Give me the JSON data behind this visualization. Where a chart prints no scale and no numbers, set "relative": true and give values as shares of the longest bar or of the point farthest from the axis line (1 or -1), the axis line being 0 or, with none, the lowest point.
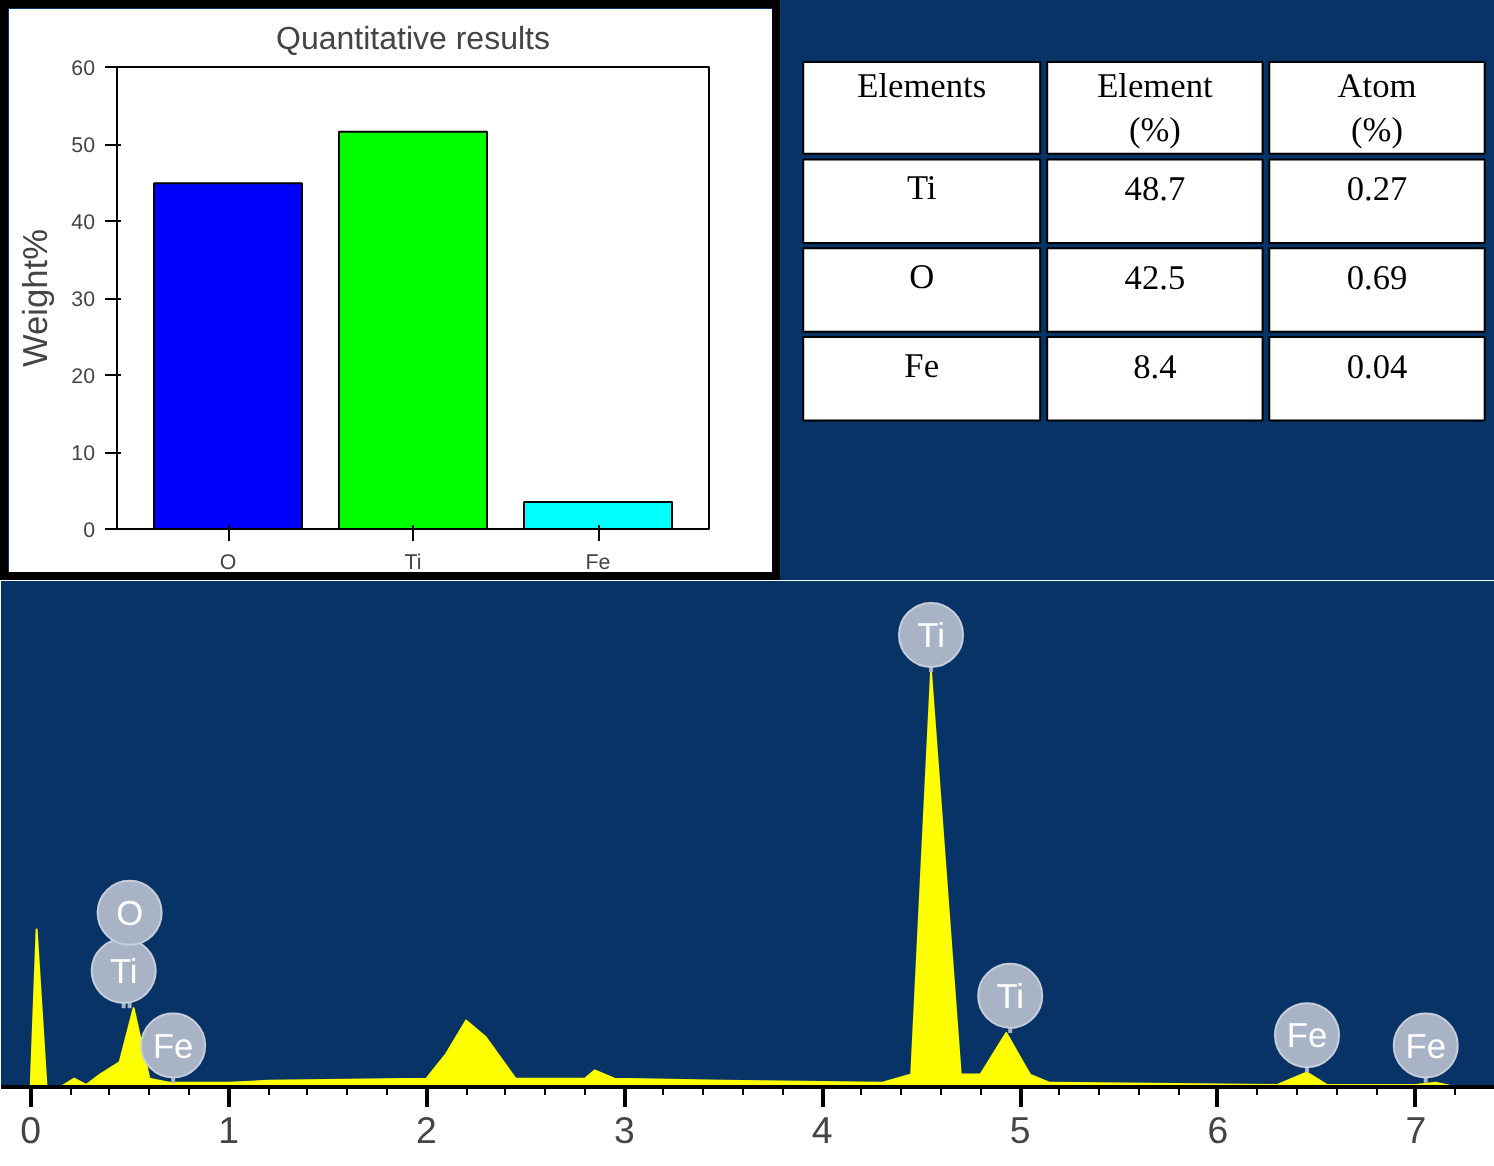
{
  "chart_data": [
    {
      "type": "bar",
      "title": "Quantitative results",
      "ylabel": "Weight%",
      "categories": [
        "O",
        "Ti",
        "Fe"
      ],
      "values": [
        44.9,
        51.6,
        3.5
      ],
      "colors": [
        "#0000ff",
        "#00ff00",
        "#00ffff"
      ],
      "ylim": [
        0,
        60
      ],
      "yticks": [
        0,
        10,
        20,
        30,
        40,
        50,
        60
      ],
      "grid": false
    },
    {
      "type": "other",
      "data_labels": true,
      "annotations": [
        "Elements"
      ],
      "categories": [
        "Ti",
        "O",
        "Fe"
      ],
      "series": [
        {
          "name": "Element (%)",
          "values": [
            48.7,
            42.5,
            8.4
          ]
        },
        {
          "name": "Atom (%)",
          "values": [
            0.27,
            0.69,
            0.04
          ]
        }
      ]
    },
    {
      "type": "area",
      "relative": true,
      "color": "#ffff00",
      "xlim": [
        -0.15,
        7.4
      ],
      "xticks": [
        0,
        1,
        2,
        3,
        4,
        5,
        6,
        7
      ],
      "grid": false,
      "x": [
        -0.05,
        0.0,
        0.03,
        0.08,
        0.15,
        0.22,
        0.28,
        0.35,
        0.45,
        0.52,
        0.6,
        0.7,
        1.0,
        1.2,
        2.0,
        2.1,
        2.2,
        2.3,
        2.45,
        2.8,
        2.85,
        2.95,
        3.5,
        4.3,
        4.45,
        4.55,
        4.7,
        4.8,
        4.93,
        5.05,
        5.15,
        6.3,
        6.45,
        6.55,
        7.0,
        7.1,
        7.2,
        7.4
      ],
      "values": [
        0.0,
        0.0,
        0.38,
        0.0,
        0.0,
        0.02,
        0.005,
        0.03,
        0.06,
        0.19,
        0.02,
        0.01,
        0.01,
        0.015,
        0.02,
        0.08,
        0.16,
        0.12,
        0.02,
        0.02,
        0.04,
        0.02,
        0.015,
        0.01,
        0.03,
        1.0,
        0.03,
        0.03,
        0.13,
        0.03,
        0.01,
        0.005,
        0.035,
        0.005,
        0.005,
        0.01,
        0.0,
        0.0
      ],
      "annotations": [
        {
          "text": "Ti",
          "x": 0.47,
          "y": 0.19
        },
        {
          "text": "O",
          "x": 0.5,
          "y": 0.19
        },
        {
          "text": "Fe",
          "x": 0.72,
          "y": 0.01
        },
        {
          "text": "Ti",
          "x": 4.55,
          "y": 1.0
        },
        {
          "text": "Ti",
          "x": 4.95,
          "y": 0.13
        },
        {
          "text": "Fe",
          "x": 6.45,
          "y": 0.035
        },
        {
          "text": "Fe",
          "x": 7.05,
          "y": 0.01
        }
      ]
    }
  ]
}
